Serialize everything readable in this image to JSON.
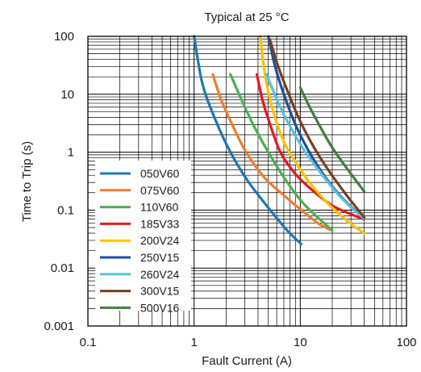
{
  "chart_data": {
    "type": "line",
    "title": "Typical at 25 °C",
    "xlabel": "Fault Current (A)",
    "ylabel": "Time to Trip (s)",
    "xscale": "log",
    "yscale": "log",
    "xlim": [
      0.1,
      100
    ],
    "ylim": [
      0.001,
      100
    ],
    "x_tick_labels": [
      "0.1",
      "1",
      "10",
      "100"
    ],
    "y_tick_labels": [
      "0.001",
      "0.01",
      "0.1",
      "1",
      "10",
      "100"
    ],
    "grid": "major and minor (log decades)",
    "legend_position": "bottom-left",
    "series": [
      {
        "name": "050V60",
        "color": "#1f77b4",
        "x": [
          1.0,
          1.2,
          1.6,
          2.2,
          3.2,
          5.0,
          7.5,
          10.2
        ],
        "y": [
          100,
          15,
          3.5,
          1.0,
          0.32,
          0.11,
          0.045,
          0.026
        ]
      },
      {
        "name": "075V60",
        "color": "#ed7d31",
        "x": [
          1.5,
          1.8,
          2.2,
          3.0,
          4.5,
          7.0,
          11,
          15,
          20
        ],
        "y": [
          22,
          8,
          3.5,
          1.1,
          0.38,
          0.18,
          0.09,
          0.058,
          0.044
        ]
      },
      {
        "name": "110V60",
        "color": "#4caf50",
        "x": [
          2.2,
          2.8,
          3.6,
          5.0,
          7.0,
          10,
          14,
          20
        ],
        "y": [
          22,
          8,
          3.0,
          1.0,
          0.37,
          0.15,
          0.08,
          0.045
        ]
      },
      {
        "name": "185V33",
        "color": "#e31a1c",
        "x": [
          3.9,
          4.4,
          5.2,
          6.5,
          9.0,
          13,
          20,
          30,
          40
        ],
        "y": [
          22,
          8,
          3.0,
          1.0,
          0.42,
          0.22,
          0.12,
          0.085,
          0.07
        ]
      },
      {
        "name": "200V24",
        "color": "#ffc000",
        "x": [
          4.2,
          4.6,
          5.2,
          6.0,
          7.2,
          9.5,
          13,
          20,
          30,
          40
        ],
        "y": [
          100,
          25,
          8,
          3.2,
          1.35,
          0.58,
          0.26,
          0.11,
          0.058,
          0.04
        ]
      },
      {
        "name": "250V15",
        "color": "#1f4e9b",
        "x": [
          5.0,
          5.8,
          7.0,
          9.0,
          12,
          17,
          25,
          40
        ],
        "y": [
          100,
          30,
          10,
          3.0,
          1.05,
          0.38,
          0.16,
          0.07
        ]
      },
      {
        "name": "260V24",
        "color": "#5bc0de",
        "x": [
          4.8,
          5.5,
          6.8,
          8.5,
          11,
          15,
          22,
          32,
          40
        ],
        "y": [
          22,
          12,
          5.0,
          2.3,
          1.05,
          0.48,
          0.2,
          0.1,
          0.072
        ]
      },
      {
        "name": "300V15",
        "color": "#7b3f1e",
        "x": [
          5.2,
          6.2,
          7.8,
          10,
          13.5,
          19,
          28,
          40
        ],
        "y": [
          85,
          30,
          10,
          3.4,
          1.2,
          0.45,
          0.17,
          0.075
        ]
      },
      {
        "name": "500V16",
        "color": "#3f7f3f",
        "x": [
          10,
          12,
          15,
          20,
          28,
          40
        ],
        "y": [
          13,
          6.5,
          3.0,
          1.2,
          0.5,
          0.21
        ]
      }
    ]
  }
}
